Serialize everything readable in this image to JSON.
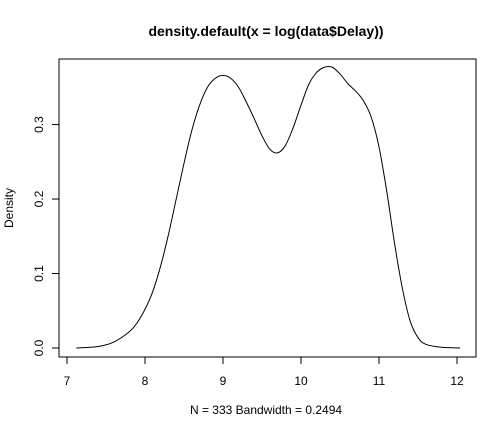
{
  "chart_data": {
    "type": "line",
    "title": "density.default(x = log(data$Delay))",
    "xlabel": "N = 333   Bandwidth = 0.2494",
    "ylabel": "Density",
    "xlim": [
      7.0,
      12.0
    ],
    "ylim": [
      0.0,
      0.38
    ],
    "x_ticks": [
      7,
      8,
      9,
      10,
      11,
      12
    ],
    "x_tick_labels": [
      "7",
      "8",
      "9",
      "10",
      "11",
      "12"
    ],
    "y_ticks": [
      0.0,
      0.1,
      0.2,
      0.3
    ],
    "y_tick_labels": [
      "0.0",
      "0.1",
      "0.2",
      "0.3"
    ],
    "grid": false,
    "series": [
      {
        "x": [
          7.12,
          7.4,
          7.6,
          7.8,
          7.9,
          8.0,
          8.1,
          8.2,
          8.3,
          8.4,
          8.5,
          8.6,
          8.7,
          8.8,
          8.9,
          9.0,
          9.1,
          9.2,
          9.3,
          9.4,
          9.5,
          9.6,
          9.7,
          9.8,
          9.9,
          10.0,
          10.1,
          10.2,
          10.3,
          10.4,
          10.5,
          10.6,
          10.7,
          10.8,
          10.9,
          11.0,
          11.1,
          11.2,
          11.3,
          11.4,
          11.5,
          11.6,
          11.8,
          12.04
        ],
        "y": [
          0.0,
          0.002,
          0.008,
          0.022,
          0.034,
          0.052,
          0.076,
          0.11,
          0.152,
          0.2,
          0.248,
          0.292,
          0.326,
          0.35,
          0.362,
          0.366,
          0.362,
          0.35,
          0.33,
          0.308,
          0.285,
          0.267,
          0.262,
          0.272,
          0.296,
          0.326,
          0.354,
          0.37,
          0.377,
          0.377,
          0.368,
          0.355,
          0.345,
          0.332,
          0.31,
          0.27,
          0.21,
          0.14,
          0.08,
          0.036,
          0.014,
          0.005,
          0.001,
          0.0
        ]
      }
    ]
  }
}
